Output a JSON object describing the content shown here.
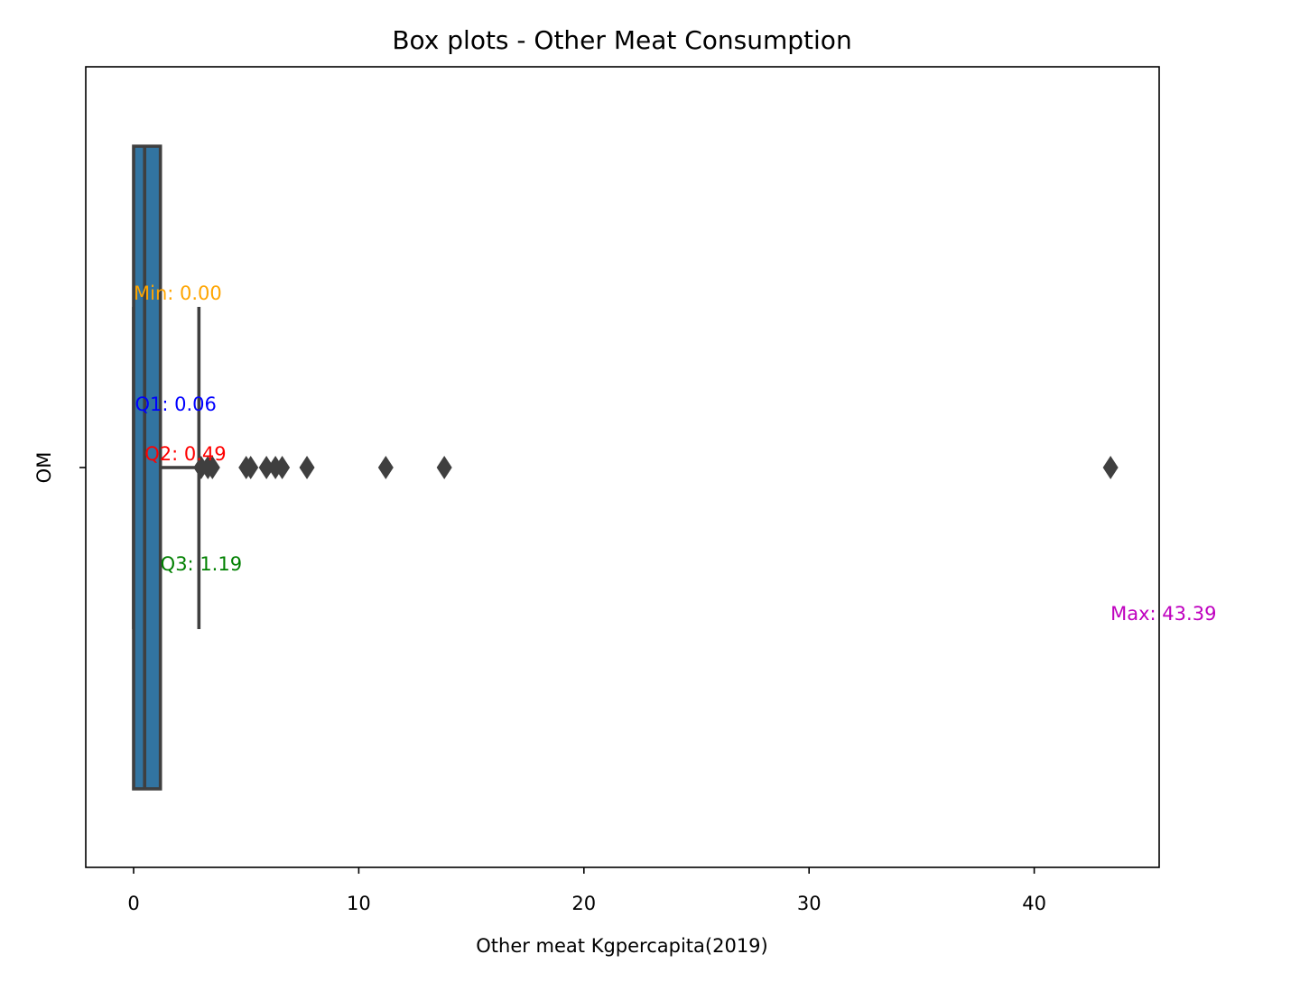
{
  "chart_data": {
    "type": "box",
    "title": "Box plots - Other Meat Consumption",
    "xlabel": "Other meat Kgpercapita(2019)",
    "ylabel": "",
    "category_tick": "OM",
    "orientation": "horizontal",
    "xlim": [
      -2.1,
      45.5
    ],
    "xticks": [
      0,
      10,
      20,
      30,
      40
    ],
    "grid": false,
    "box": {
      "min": 0.0,
      "q1": 0.06,
      "median": 0.49,
      "q3": 1.19,
      "whisker_low": 0.0,
      "whisker_high": 2.9,
      "fill_color": "#3274a1",
      "edge_color": "#3f3f3f"
    },
    "outliers": [
      3.0,
      3.3,
      3.5,
      5.0,
      5.2,
      5.9,
      6.3,
      6.6,
      7.7,
      11.2,
      13.8,
      43.39
    ],
    "annotations": [
      {
        "key": "min",
        "text": "Min: 0.00",
        "color": "#ffa500"
      },
      {
        "key": "q1",
        "text": "Q1: 0.06",
        "color": "#0000ff"
      },
      {
        "key": "q2",
        "text": "Q2: 0.49",
        "color": "#ff0000"
      },
      {
        "key": "q3",
        "text": "Q3: 1.19",
        "color": "#008000"
      },
      {
        "key": "max",
        "text": "Max: 43.39",
        "color": "#bf00bf"
      }
    ]
  }
}
